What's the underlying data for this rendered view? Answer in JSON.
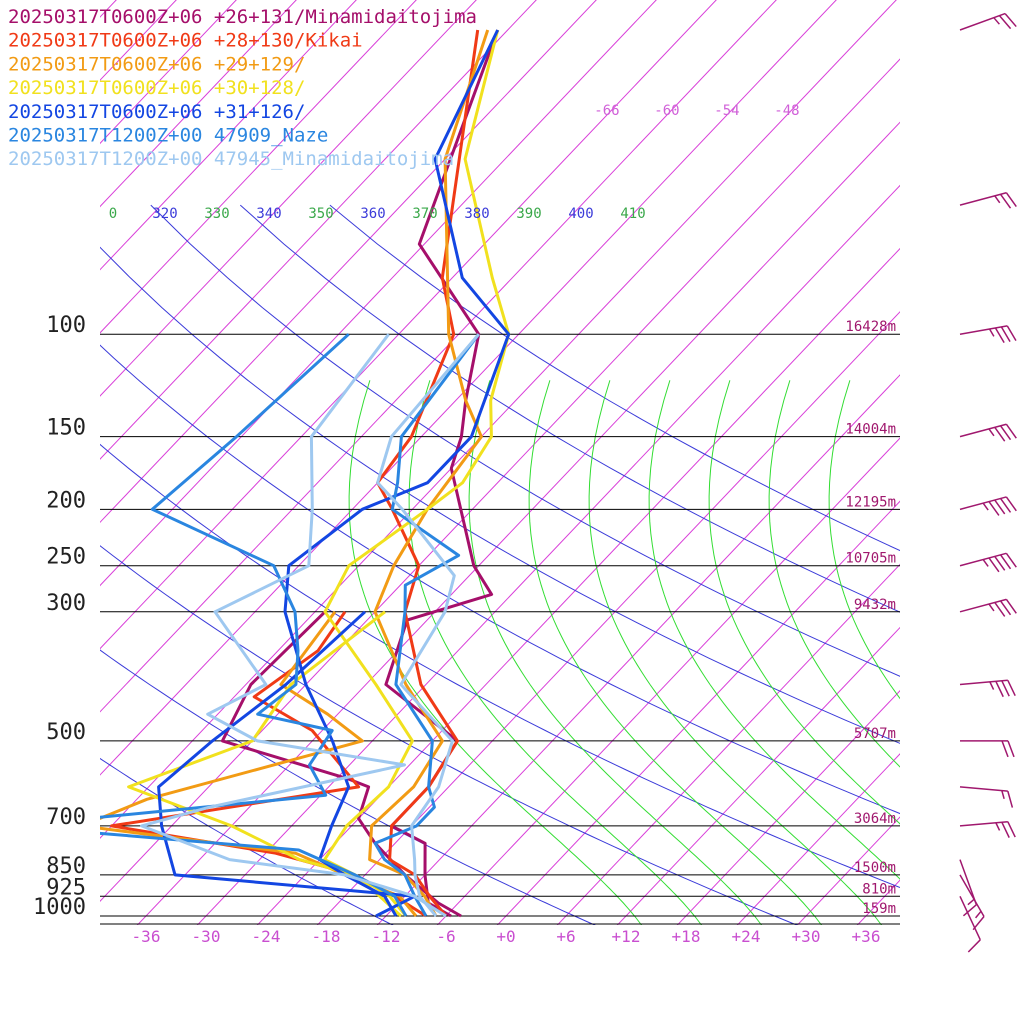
{
  "chart_data": {
    "type": "line",
    "title": "",
    "xlabel": "",
    "ylabel": "",
    "pressure_labels": [
      "100",
      "150",
      "200",
      "250",
      "300",
      "500",
      "700",
      "850",
      "925",
      "1000"
    ],
    "pressure_levels": [
      100,
      150,
      200,
      250,
      300,
      500,
      700,
      850,
      925,
      1000
    ],
    "height_labels": [
      "16428m",
      "14004m",
      "12195m",
      "10705m",
      "9432m",
      "5707m",
      "3064m",
      "1500m",
      "810m",
      "159m"
    ],
    "height_levels": [
      100,
      150,
      200,
      250,
      300,
      500,
      700,
      850,
      925,
      1000
    ],
    "temperature_ticks": [
      "-36",
      "-30",
      "-24",
      "-18",
      "-12",
      "-6",
      "+0",
      "+6",
      "+12",
      "+18",
      "+24",
      "+30",
      "+36"
    ],
    "temperature_tick_values": [
      -36,
      -30,
      -24,
      -18,
      -12,
      -6,
      0,
      6,
      12,
      18,
      24,
      30,
      36
    ],
    "isotherm_labels": [
      "-66",
      "-60",
      "-54",
      "-48"
    ],
    "isotherm_label_values": [
      -66,
      -60,
      -54,
      -48
    ],
    "theta_labels": [
      "0",
      "320",
      "330",
      "340",
      "350",
      "360",
      "370",
      "380",
      "390",
      "400",
      "410"
    ],
    "theta_label_colors": [
      "#3aa84a",
      "#3b3bd9",
      "#3aa84a",
      "#3b3bd9",
      "#3aa84a",
      "#3b3bd9",
      "#3aa84a",
      "#3b3bd9",
      "#3aa84a",
      "#3b3bd9",
      "#3aa84a"
    ],
    "grid": true,
    "legend_position": "top-left",
    "colors": {
      "isotherm": "#d93fd9",
      "dry_adiabat": "#3b3bd9",
      "moist_adiabat": "#33dd33",
      "isobar": "#000000",
      "wind_barb": "#a0186e"
    },
    "series": [
      {
        "name": "20250317T0600Z+06 +26+131/Minamidaitojima",
        "color": "#a50f6a",
        "points": [
          [
            -85.0,
            30
          ],
          [
            -72.5,
            70
          ],
          [
            -58.0,
            100
          ],
          [
            -53.0,
            130
          ],
          [
            -50.0,
            150
          ],
          [
            -48.0,
            170
          ],
          [
            -36.5,
            250
          ],
          [
            -32.0,
            280
          ],
          [
            -38.0,
            310
          ],
          [
            -34.0,
            400
          ],
          [
            -21.5,
            500
          ],
          [
            -20.0,
            600
          ],
          [
            -20.0,
            700
          ],
          [
            -15.0,
            750
          ],
          [
            -12.0,
            850
          ],
          [
            -9.0,
            950
          ],
          [
            -5.5,
            1000
          ]
        ]
      },
      {
        "name": "20250317T0600Z+06 +26+131/Minamidaitojima",
        "color": "#a50f6a",
        "points": [
          [
            -47.0,
            300
          ],
          [
            -47.5,
            400
          ],
          [
            -45.0,
            500
          ],
          [
            -29.0,
            580
          ],
          [
            -26.0,
            600
          ],
          [
            -24.0,
            680
          ],
          [
            -20.0,
            750
          ],
          [
            -14.0,
            850
          ],
          [
            -8.0,
            950
          ],
          [
            -4.5,
            1000
          ]
        ]
      },
      {
        "name": "20250317T0600Z+06 +28+130/Kikai",
        "color": "#f03a16",
        "points": [
          [
            -87.0,
            30
          ],
          [
            -67.0,
            80
          ],
          [
            -60.5,
            100
          ],
          [
            -55.0,
            150
          ],
          [
            -54.0,
            180
          ],
          [
            -50.0,
            200
          ],
          [
            -42.0,
            250
          ],
          [
            -39.0,
            300
          ],
          [
            -30.5,
            400
          ],
          [
            -21.5,
            500
          ],
          [
            -20.0,
            600
          ],
          [
            -20.0,
            700
          ],
          [
            -17.0,
            800
          ],
          [
            -13.0,
            850
          ],
          [
            -9.5,
            925
          ],
          [
            -6.0,
            1000
          ]
        ]
      },
      {
        "name": "20250317T0600Z+06 +28+130/Kikai",
        "color": "#f03a16",
        "points": [
          [
            -45.0,
            300
          ],
          [
            -44.0,
            350
          ],
          [
            -46.0,
            420
          ],
          [
            -37.0,
            480
          ],
          [
            -27.0,
            600
          ],
          [
            -48.0,
            700
          ],
          [
            -29.0,
            780
          ],
          [
            -19.0,
            850
          ],
          [
            -13.0,
            925
          ],
          [
            -8.0,
            1000
          ]
        ]
      },
      {
        "name": "20250317T0600Z+06 +29+129/",
        "color": "#f29b14",
        "points": [
          [
            -86.0,
            30
          ],
          [
            -78.0,
            50
          ],
          [
            -61.0,
            100
          ],
          [
            -53.0,
            130
          ],
          [
            -48.0,
            150
          ],
          [
            -46.5,
            200
          ],
          [
            -44.5,
            250
          ],
          [
            -42.0,
            300
          ],
          [
            -32.0,
            400
          ],
          [
            -23.0,
            500
          ],
          [
            -21.5,
            600
          ],
          [
            -22.0,
            700
          ],
          [
            -19.0,
            800
          ],
          [
            -14.0,
            850
          ],
          [
            -10.0,
            925
          ],
          [
            -7.0,
            1000
          ]
        ]
      },
      {
        "name": "20250317T0600Z+06 +29+129/",
        "color": "#f29b14",
        "points": [
          [
            -46.0,
            300
          ],
          [
            -44.5,
            400
          ],
          [
            -37.0,
            450
          ],
          [
            -31.0,
            500
          ],
          [
            -47.0,
            630
          ],
          [
            -51.0,
            700
          ],
          [
            -27.0,
            780
          ],
          [
            -20.0,
            850
          ],
          [
            -12.5,
            925
          ],
          [
            -9.0,
            1000
          ]
        ]
      },
      {
        "name": "20250317T0600Z+06 +30+128/",
        "color": "#f1e11e",
        "points": [
          [
            -85.0,
            30
          ],
          [
            -76.0,
            50
          ],
          [
            -62.0,
            80
          ],
          [
            -55.0,
            100
          ],
          [
            -50.5,
            130
          ],
          [
            -47.0,
            150
          ],
          [
            -45.5,
            180
          ],
          [
            -46.5,
            200
          ],
          [
            -49.0,
            250
          ],
          [
            -47.0,
            300
          ],
          [
            -35.0,
            400
          ],
          [
            -26.0,
            500
          ],
          [
            -24.0,
            600
          ],
          [
            -24.5,
            700
          ],
          [
            -23.5,
            800
          ],
          [
            -19.0,
            850
          ],
          [
            -13.5,
            925
          ],
          [
            -10.0,
            1000
          ]
        ]
      },
      {
        "name": "20250317T0600Z+06 +30+128/",
        "color": "#f1e11e",
        "points": [
          [
            -41.0,
            300
          ],
          [
            -43.5,
            400
          ],
          [
            -42.0,
            500
          ],
          [
            -50.0,
            600
          ],
          [
            -36.0,
            700
          ],
          [
            -26.0,
            800
          ],
          [
            -19.0,
            850
          ],
          [
            -14.5,
            925
          ],
          [
            -10.5,
            1000
          ]
        ]
      },
      {
        "name": "20250317T0600Z+06 +31+126/",
        "color": "#1346e2",
        "points": [
          [
            -85.0,
            30
          ],
          [
            -79.0,
            50
          ],
          [
            -65.0,
            80
          ],
          [
            -55.0,
            100
          ],
          [
            -49.0,
            150
          ],
          [
            -49.0,
            180
          ],
          [
            -53.0,
            200
          ],
          [
            -55.0,
            250
          ],
          [
            -51.0,
            300
          ],
          [
            -42.0,
            400
          ],
          [
            -34.0,
            500
          ],
          [
            -28.0,
            600
          ],
          [
            -26.0,
            700
          ],
          [
            -24.0,
            800
          ],
          [
            -20.0,
            850
          ],
          [
            -14.0,
            925
          ],
          [
            -11.0,
            1000
          ]
        ]
      },
      {
        "name": "20250317T0600Z+06 +31+126/",
        "color": "#1346e2",
        "points": [
          [
            -43.0,
            300
          ],
          [
            -44.0,
            400
          ],
          [
            -46.0,
            500
          ],
          [
            -47.0,
            600
          ],
          [
            -43.0,
            700
          ],
          [
            -37.0,
            850
          ],
          [
            -11.0,
            925
          ],
          [
            -13.0,
            1000
          ]
        ]
      },
      {
        "name": "20250317T1200Z+00 47909_Naze",
        "color": "#2a86e0",
        "points": [
          [
            -58.0,
            100
          ],
          [
            -56.0,
            150
          ],
          [
            -52.0,
            180
          ],
          [
            -50.0,
            200
          ],
          [
            -39.0,
            240
          ],
          [
            -41.5,
            270
          ],
          [
            -39.0,
            300
          ],
          [
            -33.0,
            400
          ],
          [
            -24.0,
            500
          ],
          [
            -20.0,
            600
          ],
          [
            -17.5,
            650
          ],
          [
            -17.5,
            700
          ],
          [
            -20.0,
            750
          ],
          [
            -17.5,
            800
          ],
          [
            -14.0,
            850
          ],
          [
            -11.0,
            925
          ],
          [
            -8.0,
            1000
          ]
        ]
      },
      {
        "name": "20250317T1200Z+00 47909_Naze",
        "color": "#2a86e0",
        "points": [
          [
            -71.0,
            100
          ],
          [
            -72.5,
            150
          ],
          [
            -74.0,
            200
          ],
          [
            -56.5,
            250
          ],
          [
            -50.0,
            300
          ],
          [
            -46.0,
            350
          ],
          [
            -43.0,
            400
          ],
          [
            -44.0,
            450
          ],
          [
            -35.0,
            480
          ],
          [
            -34.0,
            550
          ],
          [
            -29.5,
            620
          ],
          [
            -58.0,
            700
          ],
          [
            -27.0,
            770
          ],
          [
            -19.0,
            850
          ],
          [
            -13.0,
            925
          ],
          [
            -10.0,
            1000
          ]
        ]
      },
      {
        "name": "20250317T1200Z+00 47945_Minamidaitojima",
        "color": "#9ec8f0",
        "points": [
          [
            -58.0,
            100
          ],
          [
            -57.0,
            150
          ],
          [
            -54.0,
            180
          ],
          [
            -49.0,
            200
          ],
          [
            -37.5,
            260
          ],
          [
            -35.0,
            300
          ],
          [
            -32.5,
            400
          ],
          [
            -22.0,
            500
          ],
          [
            -19.0,
            600
          ],
          [
            -18.0,
            700
          ],
          [
            -14.5,
            800
          ],
          [
            -13.0,
            850
          ],
          [
            -10.5,
            925
          ],
          [
            -7.0,
            1000
          ]
        ]
      },
      {
        "name": "20250317T1200Z+00 47945_Minamidaitojima",
        "color": "#9ec8f0",
        "points": [
          [
            -67.0,
            100
          ],
          [
            -65.0,
            150
          ],
          [
            -58.0,
            200
          ],
          [
            -53.0,
            250
          ],
          [
            -58.0,
            300
          ],
          [
            -46.0,
            400
          ],
          [
            -49.0,
            450
          ],
          [
            -41.5,
            500
          ],
          [
            -24.5,
            550
          ],
          [
            -40.0,
            650
          ],
          [
            -45.0,
            700
          ],
          [
            -33.0,
            800
          ],
          [
            -20.0,
            850
          ],
          [
            -11.0,
            925
          ],
          [
            -6.0,
            1000
          ]
        ]
      }
    ],
    "wind_barbs": [
      {
        "pressure": 30,
        "knots": 25,
        "direction": 250
      },
      {
        "pressure": 60,
        "knots": 25,
        "direction": 255
      },
      {
        "pressure": 100,
        "knots": 35,
        "direction": 260
      },
      {
        "pressure": 150,
        "knots": 35,
        "direction": 255
      },
      {
        "pressure": 200,
        "knots": 45,
        "direction": 255
      },
      {
        "pressure": 250,
        "knots": 45,
        "direction": 255
      },
      {
        "pressure": 300,
        "knots": 35,
        "direction": 255
      },
      {
        "pressure": 400,
        "knots": 35,
        "direction": 265
      },
      {
        "pressure": 500,
        "knots": 20,
        "direction": 270
      },
      {
        "pressure": 600,
        "knots": 15,
        "direction": 275
      },
      {
        "pressure": 700,
        "knots": 25,
        "direction": 265
      },
      {
        "pressure": 800,
        "knots": 15,
        "direction": 340
      },
      {
        "pressure": 850,
        "knots": 15,
        "direction": 330
      },
      {
        "pressure": 925,
        "knots": 10,
        "direction": 335
      }
    ]
  }
}
